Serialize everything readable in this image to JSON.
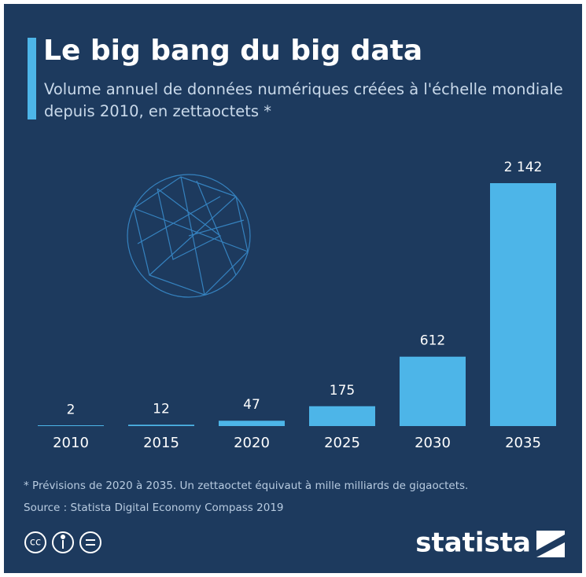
{
  "chart_data": {
    "type": "bar",
    "title": "Le big bang du big data",
    "subtitle": "Volume annuel de données numériques créées à l'échelle mondiale depuis 2010, en zettaoctets *",
    "categories": [
      "2010",
      "2015",
      "2020",
      "2025",
      "2030",
      "2035"
    ],
    "values": [
      2,
      12,
      47,
      175,
      612,
      2142
    ],
    "value_labels": [
      "2",
      "12",
      "47",
      "175",
      "612",
      "2 142"
    ],
    "color": "#4db5e8",
    "footnote": "* Prévisions de 2020 à 2035. Un zettaoctet équivaut à mille milliards de gigaoctets.",
    "source": "Source : Statista Digital Economy Compass 2019",
    "license": "cc",
    "logo": "statista"
  }
}
